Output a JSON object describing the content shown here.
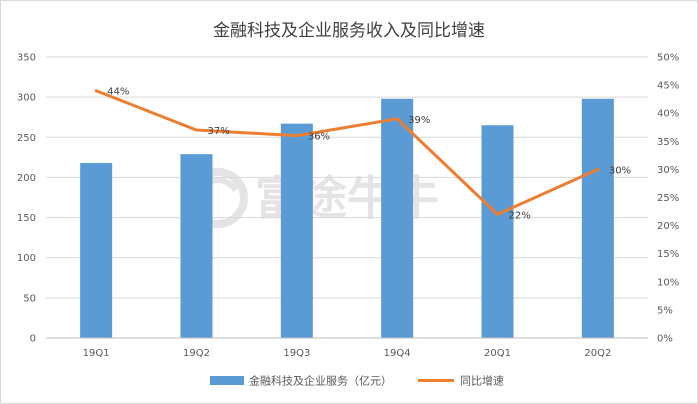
{
  "chart_data": {
    "type": "bar",
    "title": "金融科技及企业服务收入及同比增速",
    "categories": [
      "19Q1",
      "19Q2",
      "19Q3",
      "19Q4",
      "20Q1",
      "20Q2"
    ],
    "series": [
      {
        "name": "金融科技及企业服务（亿元）",
        "type": "bar",
        "axis": "left",
        "color": "#5b9bd5",
        "values": [
          218,
          229,
          267,
          298,
          265,
          298
        ]
      },
      {
        "name": "同比增速",
        "type": "line",
        "axis": "right",
        "color": "#ed7d31",
        "values": [
          44,
          37,
          36,
          39,
          22,
          30
        ],
        "labels": [
          "44%",
          "37%",
          "36%",
          "39%",
          "22%",
          "30%"
        ]
      }
    ],
    "y_left": {
      "min": 0,
      "max": 350,
      "ticks": [
        "0",
        "50",
        "100",
        "150",
        "200",
        "250",
        "300",
        "350"
      ]
    },
    "y_right": {
      "min": 0,
      "max": 50,
      "ticks": [
        "0%",
        "5%",
        "10%",
        "15%",
        "20%",
        "25%",
        "30%",
        "35%",
        "40%",
        "45%",
        "50%"
      ]
    },
    "grid": true,
    "legend_position": "bottom",
    "watermark": "富途牛牛"
  }
}
